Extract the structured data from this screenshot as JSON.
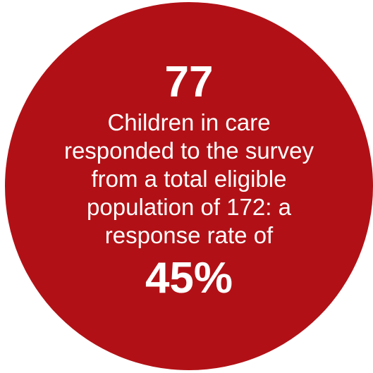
{
  "infographic": {
    "count": "77",
    "description": "Children in care responded to the survey from a total eligible population of 172: a response rate of",
    "rate": "45%"
  },
  "colors": {
    "circle_fill": "#b11116",
    "text": "#ffffff",
    "background": "#ffffff"
  }
}
